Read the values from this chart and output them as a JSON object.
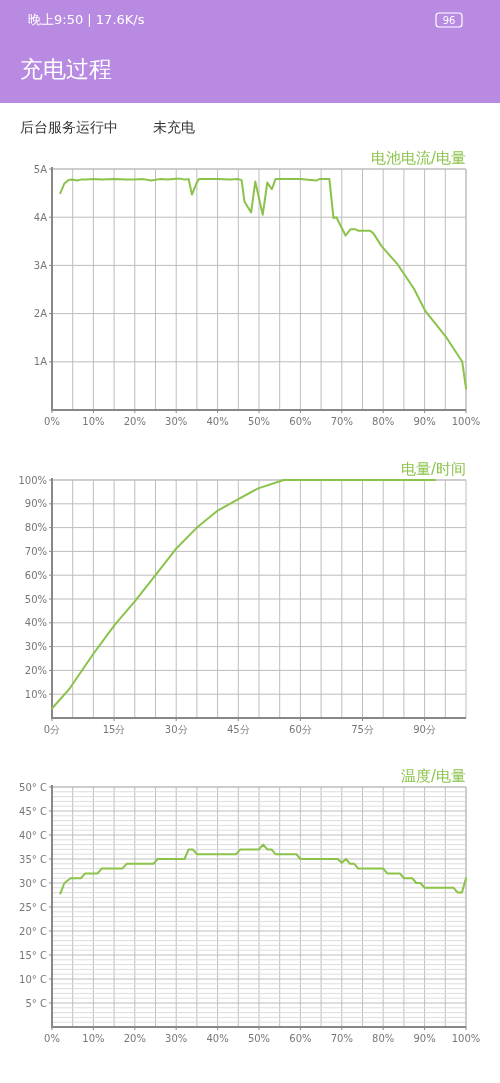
{
  "chart_data": [
    {
      "type": "line",
      "title": "电池电流/电量",
      "annotations": [
        "晚上9:50 | 17.6K/s",
        "96",
        "充电过程",
        "后台服务运行中",
        "未充电"
      ],
      "x": [
        2,
        3,
        4,
        5,
        6,
        7,
        8,
        10,
        12,
        15,
        18,
        20,
        22,
        24,
        26,
        28,
        30,
        31,
        32,
        33,
        33.8,
        35,
        35.5,
        40,
        43,
        45,
        45.8,
        46.5,
        48.1,
        49.1,
        50.9,
        52,
        53.1,
        54,
        60,
        63.8,
        64.6,
        67,
        68,
        68.7,
        70.9,
        72.1,
        73.3,
        73.9,
        76.8,
        77.6,
        79.6,
        83.5,
        87.4,
        90.2,
        95.3,
        99.1,
        100
      ],
      "series": [
        {
          "color": "#8bc34a",
          "values": [
            4.5,
            4.7,
            4.77,
            4.78,
            4.76,
            4.78,
            4.78,
            4.79,
            4.78,
            4.79,
            4.78,
            4.78,
            4.79,
            4.76,
            4.79,
            4.78,
            4.8,
            4.8,
            4.78,
            4.79,
            4.47,
            4.72,
            4.79,
            4.79,
            4.78,
            4.79,
            4.77,
            4.32,
            4.1,
            4.74,
            4.05,
            4.72,
            4.58,
            4.79,
            4.79,
            4.76,
            4.79,
            4.79,
            3.98,
            4.0,
            3.62,
            3.75,
            3.75,
            3.72,
            3.72,
            3.67,
            3.4,
            3.02,
            2.52,
            2.05,
            1.5,
            1.0,
            0.45
          ]
        }
      ],
      "xlim": [
        0,
        100
      ],
      "ylim": [
        0,
        5
      ],
      "xticks": [
        {
          "value": 0,
          "label": "0%"
        },
        {
          "value": 5,
          "label": null
        },
        {
          "value": 10,
          "label": "10%"
        },
        {
          "value": 15,
          "label": null
        },
        {
          "value": 20,
          "label": "20%"
        },
        {
          "value": 25,
          "label": null
        },
        {
          "value": 30,
          "label": "30%"
        },
        {
          "value": 35,
          "label": null
        },
        {
          "value": 40,
          "label": "40%"
        },
        {
          "value": 45,
          "label": null
        },
        {
          "value": 50,
          "label": "50%"
        },
        {
          "value": 55,
          "label": null
        },
        {
          "value": 60,
          "label": "60%"
        },
        {
          "value": 65,
          "label": null
        },
        {
          "value": 70,
          "label": "70%"
        },
        {
          "value": 75,
          "label": null
        },
        {
          "value": 80,
          "label": "80%"
        },
        {
          "value": 85,
          "label": null
        },
        {
          "value": 90,
          "label": "90%"
        },
        {
          "value": 95,
          "label": null
        },
        {
          "value": 100,
          "label": "100%"
        }
      ],
      "yticks": [
        {
          "value": 1,
          "label": "1A"
        },
        {
          "value": 2,
          "label": "2A"
        },
        {
          "value": 3,
          "label": "3A"
        },
        {
          "value": 4,
          "label": "4A"
        },
        {
          "value": 5,
          "label": "5A"
        }
      ],
      "grid": true
    },
    {
      "type": "line",
      "title": "电量/时间",
      "x": [
        0,
        4.1,
        10,
        15.1,
        20,
        25,
        29.9,
        35,
        39.9,
        45,
        49.8,
        56,
        92.5
      ],
      "series": [
        {
          "color": "#8bc34a",
          "values": [
            4,
            12,
            27,
            39,
            49,
            60,
            71,
            80,
            87,
            92,
            96.5,
            100,
            100
          ]
        }
      ],
      "xlim": [
        0,
        100
      ],
      "ylim": [
        0,
        100
      ],
      "xticks": [
        {
          "value": 0,
          "label": "0分"
        },
        {
          "value": 5,
          "label": null
        },
        {
          "value": 10,
          "label": null
        },
        {
          "value": 15,
          "label": "15分"
        },
        {
          "value": 20,
          "label": null
        },
        {
          "value": 25,
          "label": null
        },
        {
          "value": 30,
          "label": "30分"
        },
        {
          "value": 35,
          "label": null
        },
        {
          "value": 40,
          "label": null
        },
        {
          "value": 45,
          "label": "45分"
        },
        {
          "value": 50,
          "label": null
        },
        {
          "value": 55,
          "label": null
        },
        {
          "value": 60,
          "label": "60分"
        },
        {
          "value": 65,
          "label": null
        },
        {
          "value": 70,
          "label": null
        },
        {
          "value": 75,
          "label": "75分"
        },
        {
          "value": 80,
          "label": null
        },
        {
          "value": 85,
          "label": null
        },
        {
          "value": 90,
          "label": "90分"
        },
        {
          "value": 95,
          "label": null
        }
      ],
      "yticks": [
        {
          "value": 10,
          "label": "10%"
        },
        {
          "value": 20,
          "label": "20%"
        },
        {
          "value": 30,
          "label": "30%"
        },
        {
          "value": 40,
          "label": "40%"
        },
        {
          "value": 50,
          "label": "50%"
        },
        {
          "value": 60,
          "label": "60%"
        },
        {
          "value": 70,
          "label": "70%"
        },
        {
          "value": 80,
          "label": "80%"
        },
        {
          "value": 90,
          "label": "90%"
        },
        {
          "value": 100,
          "label": "100%"
        }
      ],
      "grid": true
    },
    {
      "type": "line",
      "title": "温度/电量",
      "x": [
        2,
        3,
        4.5,
        7,
        8,
        11,
        12,
        17,
        18,
        24.5,
        25.5,
        32,
        33,
        34,
        35,
        44.5,
        45.5,
        50,
        51,
        52,
        53,
        54,
        59,
        60,
        69,
        70,
        71,
        72,
        73,
        74,
        80,
        81,
        84,
        85,
        87,
        88,
        89,
        90,
        97,
        98,
        99,
        100
      ],
      "series": [
        {
          "color": "#8bc34a",
          "values": [
            27.8,
            30,
            31,
            31,
            32,
            32,
            33,
            33,
            34,
            34,
            35,
            35,
            37,
            37,
            36,
            36,
            37,
            37,
            38,
            37,
            37,
            36,
            36,
            35,
            35,
            34.2,
            35,
            34,
            34,
            33,
            33,
            32,
            32,
            31,
            31,
            30,
            30,
            29,
            29,
            28,
            28,
            31
          ]
        }
      ],
      "xlim": [
        0,
        100
      ],
      "ylim": [
        0,
        50
      ],
      "xticks": [
        {
          "value": 0,
          "label": "0%"
        },
        {
          "value": 5,
          "label": null
        },
        {
          "value": 10,
          "label": "10%"
        },
        {
          "value": 15,
          "label": null
        },
        {
          "value": 20,
          "label": "20%"
        },
        {
          "value": 25,
          "label": null
        },
        {
          "value": 30,
          "label": "30%"
        },
        {
          "value": 35,
          "label": null
        },
        {
          "value": 40,
          "label": "40%"
        },
        {
          "value": 45,
          "label": null
        },
        {
          "value": 50,
          "label": "50%"
        },
        {
          "value": 55,
          "label": null
        },
        {
          "value": 60,
          "label": "60%"
        },
        {
          "value": 65,
          "label": null
        },
        {
          "value": 70,
          "label": "70%"
        },
        {
          "value": 75,
          "label": null
        },
        {
          "value": 80,
          "label": "80%"
        },
        {
          "value": 85,
          "label": null
        },
        {
          "value": 90,
          "label": "90%"
        },
        {
          "value": 95,
          "label": null
        },
        {
          "value": 100,
          "label": "100%"
        }
      ],
      "yticks": [
        {
          "value": 1,
          "label": null
        },
        {
          "value": 2,
          "label": null
        },
        {
          "value": 3,
          "label": null
        },
        {
          "value": 4,
          "label": null
        },
        {
          "value": 5,
          "label": "5° C"
        },
        {
          "value": 6,
          "label": null
        },
        {
          "value": 7,
          "label": null
        },
        {
          "value": 8,
          "label": null
        },
        {
          "value": 9,
          "label": null
        },
        {
          "value": 10,
          "label": "10° C"
        },
        {
          "value": 11,
          "label": null
        },
        {
          "value": 12,
          "label": null
        },
        {
          "value": 13,
          "label": null
        },
        {
          "value": 14,
          "label": null
        },
        {
          "value": 15,
          "label": "15° C"
        },
        {
          "value": 16,
          "label": null
        },
        {
          "value": 17,
          "label": null
        },
        {
          "value": 18,
          "label": null
        },
        {
          "value": 19,
          "label": null
        },
        {
          "value": 20,
          "label": "20° C"
        },
        {
          "value": 21,
          "label": null
        },
        {
          "value": 22,
          "label": null
        },
        {
          "value": 23,
          "label": null
        },
        {
          "value": 24,
          "label": null
        },
        {
          "value": 25,
          "label": "25° C"
        },
        {
          "value": 26,
          "label": null
        },
        {
          "value": 27,
          "label": null
        },
        {
          "value": 28,
          "label": null
        },
        {
          "value": 29,
          "label": null
        },
        {
          "value": 30,
          "label": "30° C"
        },
        {
          "value": 31,
          "label": null
        },
        {
          "value": 32,
          "label": null
        },
        {
          "value": 33,
          "label": null
        },
        {
          "value": 34,
          "label": null
        },
        {
          "value": 35,
          "label": "35° C"
        },
        {
          "value": 36,
          "label": null
        },
        {
          "value": 37,
          "label": null
        },
        {
          "value": 38,
          "label": null
        },
        {
          "value": 39,
          "label": null
        },
        {
          "value": 40,
          "label": "40° C"
        },
        {
          "value": 41,
          "label": null
        },
        {
          "value": 42,
          "label": null
        },
        {
          "value": 43,
          "label": null
        },
        {
          "value": 44,
          "label": null
        },
        {
          "value": 45,
          "label": "45° C"
        },
        {
          "value": 46,
          "label": null
        },
        {
          "value": 47,
          "label": null
        },
        {
          "value": 48,
          "label": null
        },
        {
          "value": 49,
          "label": null
        },
        {
          "value": 50,
          "label": "50° C"
        }
      ],
      "grid": true
    }
  ]
}
